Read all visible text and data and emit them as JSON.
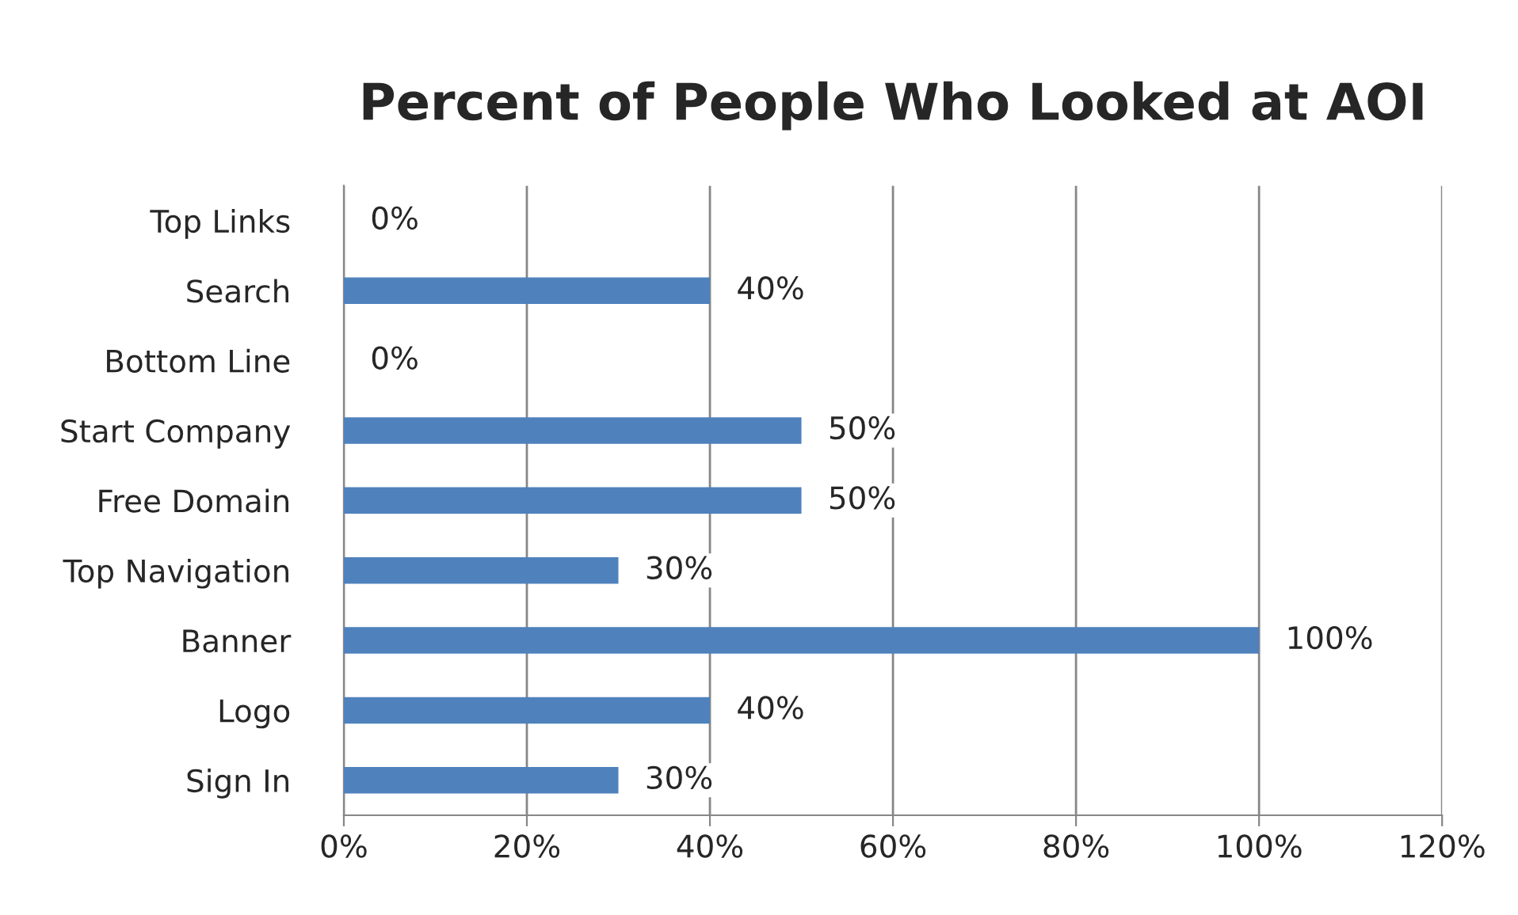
{
  "chart_data": {
    "type": "bar",
    "orientation": "horizontal",
    "title": "Percent of People Who Looked at AOI",
    "categories": [
      "Top Links",
      "Search",
      "Bottom Line",
      "Start Company",
      "Free Domain",
      "Top Navigation",
      "Banner",
      "Logo",
      "Sign In"
    ],
    "values": [
      0,
      40,
      0,
      50,
      50,
      30,
      100,
      40,
      30
    ],
    "value_labels": [
      "0%",
      "40%",
      "0%",
      "50%",
      "50%",
      "30%",
      "100%",
      "40%",
      "30%"
    ],
    "color": "#4f81bd",
    "xlim": [
      0,
      120
    ],
    "xticks": [
      {
        "value": 0,
        "label": "0%"
      },
      {
        "value": 20,
        "label": "20%"
      },
      {
        "value": 40,
        "label": "40%"
      },
      {
        "value": 60,
        "label": "60%"
      },
      {
        "value": 80,
        "label": "80%"
      },
      {
        "value": 100,
        "label": "100%"
      },
      {
        "value": 120,
        "label": "120%"
      }
    ],
    "grid": "x",
    "legend": false
  }
}
